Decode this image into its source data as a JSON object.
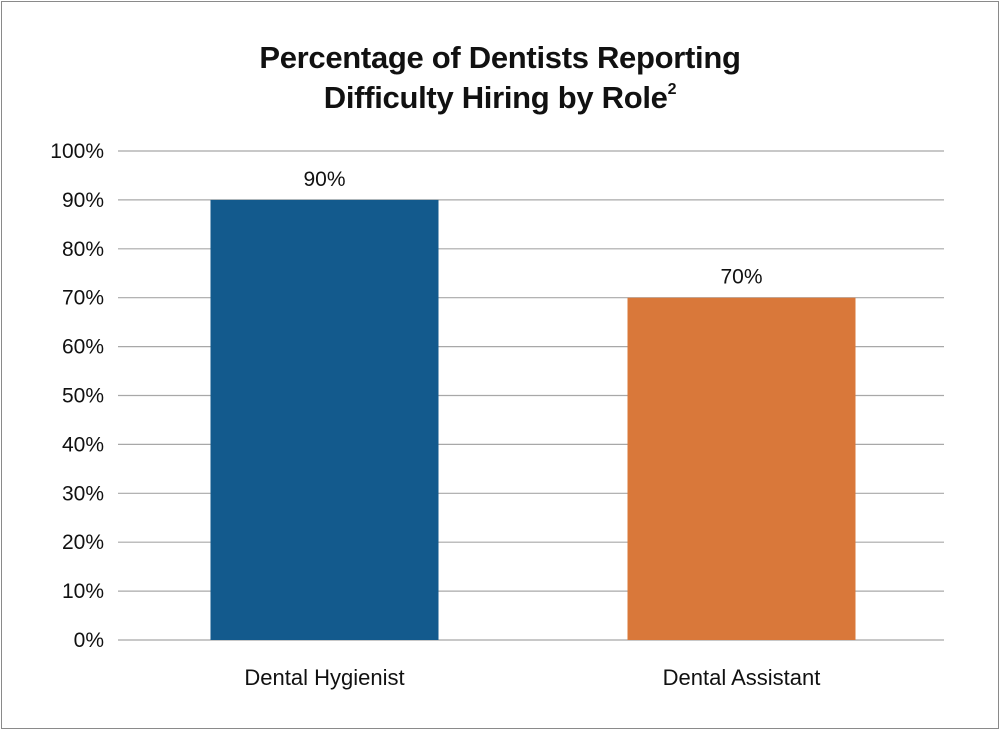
{
  "chart_data": {
    "type": "bar",
    "title_line1": "Percentage of Dentists Reporting",
    "title_line2": "Difficulty Hiring by Role",
    "title_superscript": "2",
    "xlabel": "",
    "ylabel": "",
    "categories": [
      "Dental Hygienist",
      "Dental Assistant"
    ],
    "values": [
      90,
      70
    ],
    "data_labels": [
      "90%",
      "70%"
    ],
    "bar_colors": [
      "#135a8d",
      "#d9783a"
    ],
    "ylim": [
      0,
      100
    ],
    "y_ticks": [
      0,
      10,
      20,
      30,
      40,
      50,
      60,
      70,
      80,
      90,
      100
    ],
    "y_tick_labels": [
      "0%",
      "10%",
      "20%",
      "30%",
      "40%",
      "50%",
      "60%",
      "70%",
      "80%",
      "90%",
      "100%"
    ],
    "grid": true,
    "legend": "none",
    "grid_color": "#a8a8a8"
  }
}
